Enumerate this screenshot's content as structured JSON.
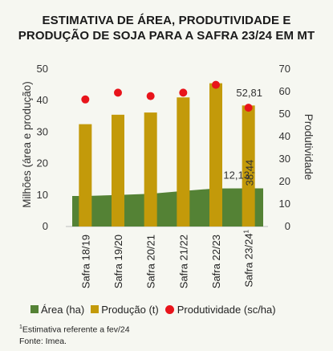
{
  "chart_data": {
    "type": "bar",
    "title_line1": "ESTIMATIVA DE ÁREA, PRODUTIVIDADE E",
    "title_line2": "PRODUÇÃO DE SOJA PARA A SAFRA 23/24 EM MT",
    "categories": [
      "Safra 18/19",
      "Safra 19/20",
      "Safra 20/21",
      "Safra 21/22",
      "Safra 22/23",
      "Safra 23/24"
    ],
    "last_category_superscript": "1",
    "ylabel_left": "Milhões (área e produção)",
    "ylabel_right": "Produtividade",
    "ylim_left": [
      0,
      50
    ],
    "yticks_left": [
      0,
      10,
      20,
      30,
      40,
      50
    ],
    "ylim_right": [
      0,
      70
    ],
    "yticks_right": [
      0,
      10,
      20,
      30,
      40,
      50,
      60,
      70
    ],
    "series": [
      {
        "name": "Área (ha)",
        "type": "area",
        "axis": "left",
        "color": "#548235",
        "values": [
          9.7,
          10.0,
          10.4,
          11.3,
          12.1,
          12.13
        ]
      },
      {
        "name": "Produção (t)",
        "type": "bar",
        "axis": "left",
        "color": "#c39a0a",
        "values": [
          32.5,
          35.5,
          36.2,
          41.0,
          45.5,
          38.44
        ]
      },
      {
        "name": "Produtividade (sc/ha)",
        "type": "scatter",
        "axis": "right",
        "color": "#e8141b",
        "values": [
          56.5,
          59.5,
          58.0,
          59.5,
          63.0,
          52.81
        ]
      }
    ],
    "data_labels": {
      "area_last": "12,13",
      "area_last_color": "#548235",
      "production_last": "38,44",
      "productivity_last": "52,81",
      "productivity_last_color": "#e8141b"
    },
    "legend_position": "bottom"
  },
  "legend": {
    "area": "Área (ha)",
    "production": "Produção (t)",
    "productivity": "Produtividade (sc/ha)"
  },
  "footnote": {
    "marker": "1",
    "note": "Estimativa referente a fev/24",
    "source": "Fonte: Imea."
  }
}
